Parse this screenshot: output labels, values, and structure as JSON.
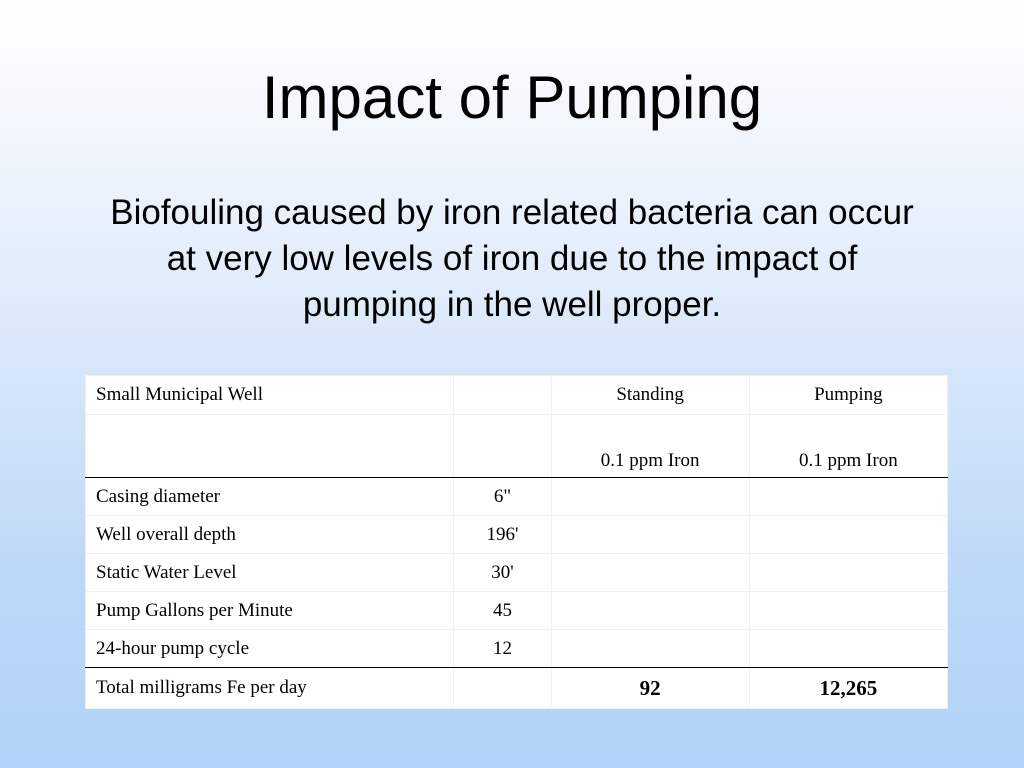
{
  "slide": {
    "title": "Impact of Pumping",
    "subtitle": "Biofouling caused by iron related bacteria can occur at very low levels of iron due to the impact of pumping in the well proper."
  },
  "table": {
    "header": {
      "label": "Small Municipal Well",
      "col_standing": "Standing",
      "col_pumping": "Pumping",
      "standing_iron": "0.1 ppm Iron",
      "pumping_iron": "0.1 ppm Iron"
    },
    "rows": [
      {
        "label": "Casing diameter",
        "value": "6\""
      },
      {
        "label": "Well overall depth",
        "value": "196'"
      },
      {
        "label": "Static Water Level",
        "value": "30'"
      },
      {
        "label": "Pump Gallons per Minute",
        "value": "45"
      },
      {
        "label": "24-hour pump cycle",
        "value": "12"
      }
    ],
    "total": {
      "label": "Total milligrams Fe per day",
      "standing": "92",
      "pumping": "12,265"
    }
  }
}
